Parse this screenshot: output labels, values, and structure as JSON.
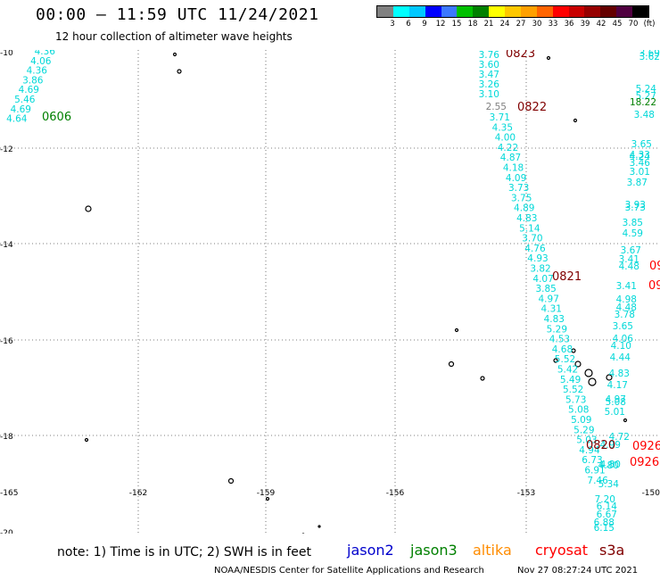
{
  "title": "00:00 – 11:59 UTC 11/24/2021",
  "subtitle": "12 hour collection of altimeter wave heights",
  "legend": {
    "colors": [
      "#808080",
      "#00ffff",
      "#00c8ff",
      "#0000ff",
      "#3c78ff",
      "#00c000",
      "#008000",
      "#ffff00",
      "#ffc800",
      "#ffa000",
      "#ff6400",
      "#ff0000",
      "#c80000",
      "#960000",
      "#640000",
      "#500040",
      "#000000"
    ],
    "labels": [
      "3",
      "6",
      "9",
      "12",
      "15",
      "18",
      "21",
      "24",
      "27",
      "30",
      "33",
      "36",
      "39",
      "42",
      "45",
      "70",
      "(ft)"
    ]
  },
  "axes": {
    "lat_labels": [
      "-10",
      "-12",
      "-14",
      "-16",
      "-18",
      "-20"
    ],
    "lon_labels": [
      "-165",
      "-162",
      "-159",
      "-156",
      "-153",
      "-150"
    ]
  },
  "track_times": [
    {
      "text": "0606",
      "color": "#008000"
    },
    {
      "text": "0823",
      "color": "#800000"
    },
    {
      "text": "0822",
      "color": "#800000"
    },
    {
      "text": "0821",
      "color": "#800000"
    },
    {
      "text": "0820",
      "color": "#800000"
    },
    {
      "text": "0926",
      "color": "#ff0000"
    },
    {
      "text": "0926",
      "color": "#ff0000"
    },
    {
      "text": "09",
      "color": "#ff0000"
    },
    {
      "text": "09",
      "color": "#ff0000"
    }
  ],
  "tracks": {
    "jason3_left": [
      "4.36",
      "4.06",
      "4.36",
      "3.86",
      "4.69",
      "5.46",
      "4.69",
      "4.64"
    ],
    "main_track": [
      "3.76",
      "3.60",
      "3.47",
      "3.26",
      "3.10",
      "2.55",
      "3.71",
      "4.35",
      "4.00",
      "4.22",
      "4.87",
      "4.18",
      "4.09",
      "3.73",
      "3.75",
      "4.89",
      "4.83",
      "5.14",
      "3.70",
      "4.76",
      "4.93",
      "3.82",
      "4.07",
      "3.85",
      "4.97",
      "4.31",
      "4.83",
      "5.29",
      "4.53",
      "4.68",
      "5.52",
      "5.42",
      "5.49",
      "5.52",
      "5.73",
      "5.08",
      "5.09",
      "5.29",
      "5.03",
      "4.94",
      "6.73",
      "6.91",
      "7.46"
    ],
    "right_track": [
      "3.69",
      "3.62",
      "5.24",
      "5.27",
      "18.22",
      "3.48",
      "3.65",
      "4.33",
      "4.24",
      "3.46",
      "3.01",
      "3.87",
      "3.93",
      "3.73",
      "3.85",
      "4.59",
      "3.67",
      "3.41",
      "4.48",
      "3.41",
      "4.98",
      "4.48",
      "3.78",
      "3.65",
      "4.06",
      "4.10",
      "4.44",
      "4.83",
      "4.17",
      "4.97",
      "5.08",
      "5.01",
      "4.72",
      "4.99",
      "4.80",
      "4.80",
      "5.34",
      "7.20",
      "6.14",
      "6.67",
      "6.88",
      "6.15"
    ]
  },
  "footer": {
    "note": "note: 1) Time is in UTC; 2) SWH is in feet",
    "satellites": [
      {
        "name": "jason2",
        "color": "#0000cc"
      },
      {
        "name": "jason3",
        "color": "#008000"
      },
      {
        "name": "altika",
        "color": "#ff8c00"
      },
      {
        "name": "cryosat",
        "color": "#ff0000"
      },
      {
        "name": "s3a",
        "color": "#800000"
      }
    ],
    "credit": "NOAA/NESDIS Center for Satellite Applications and Research",
    "generated": "Nov 27 08:27:24 UTC 2021"
  }
}
